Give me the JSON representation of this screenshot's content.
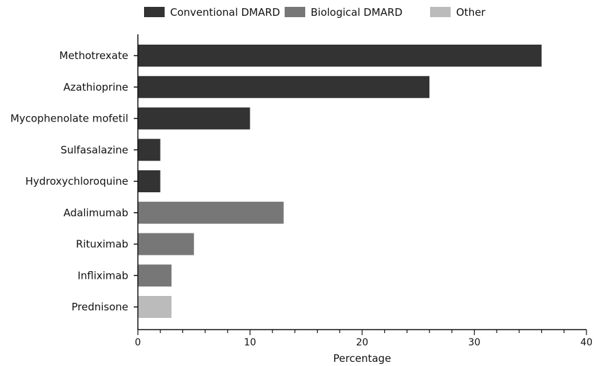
{
  "chart_data": {
    "type": "bar",
    "orientation": "horizontal",
    "xlabel": "Percentage",
    "ylabel": "",
    "xlim": [
      0,
      40
    ],
    "x_ticks": [
      0,
      10,
      20,
      30,
      40
    ],
    "x_minor_step": 2,
    "grid": false,
    "legend_position": "top",
    "legend": [
      {
        "name": "Conventional DMARD",
        "color": "#333333"
      },
      {
        "name": "Biological DMARD",
        "color": "#777777"
      },
      {
        "name": "Other",
        "color": "#bbbbbb"
      }
    ],
    "bars": [
      {
        "category": "Methotrexate",
        "value": 36,
        "group": "Conventional DMARD"
      },
      {
        "category": "Azathioprine",
        "value": 26,
        "group": "Conventional DMARD"
      },
      {
        "category": "Mycophenolate mofetil",
        "value": 10,
        "group": "Conventional DMARD"
      },
      {
        "category": "Sulfasalazine",
        "value": 2,
        "group": "Conventional DMARD"
      },
      {
        "category": "Hydroxychloroquine",
        "value": 2,
        "group": "Conventional DMARD"
      },
      {
        "category": "Adalimumab",
        "value": 13,
        "group": "Biological DMARD"
      },
      {
        "category": "Rituximab",
        "value": 5,
        "group": "Biological DMARD"
      },
      {
        "category": "Infliximab",
        "value": 3,
        "group": "Biological DMARD"
      },
      {
        "category": "Prednisone",
        "value": 3,
        "group": "Other"
      }
    ]
  }
}
